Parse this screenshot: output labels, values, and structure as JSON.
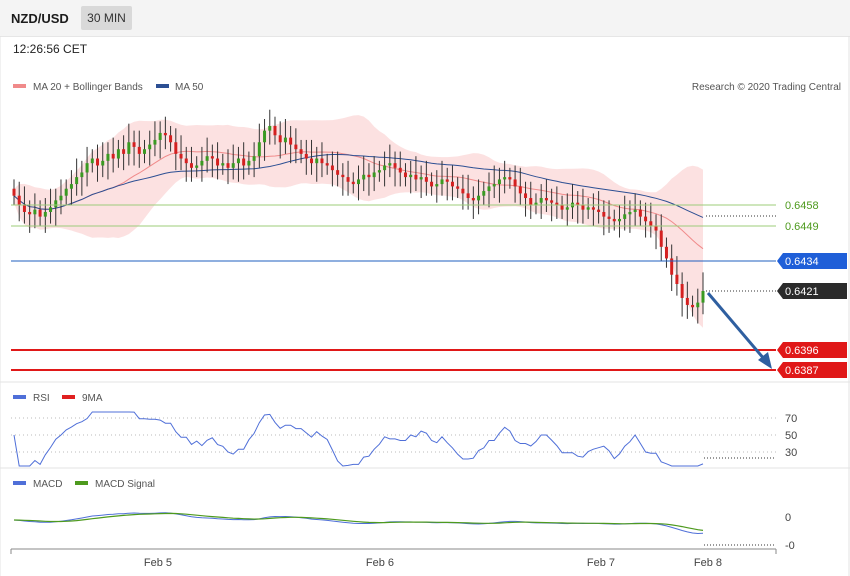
{
  "header": {
    "pair": "NZD/USD",
    "timeframe": "30 MIN",
    "time": "12:26:56 CET"
  },
  "legend": {
    "ma20": {
      "label": "MA 20 + Bollinger Bands",
      "color": "#f08a8a"
    },
    "ma50": {
      "label": "MA 50",
      "color": "#2c4f93"
    },
    "rsi": {
      "label": "RSI",
      "color": "#4f6fd8"
    },
    "rsi9": {
      "label": "9MA",
      "color": "#e02020"
    },
    "macd": {
      "label": "MACD",
      "color": "#4f6fd8"
    },
    "macdsig": {
      "label": "MACD Signal",
      "color": "#4e9a1e"
    }
  },
  "credit": "Research © 2020 Trading Central",
  "levels": {
    "r1": "0.6458",
    "r2": "0.6449",
    "pivot": "0.6434",
    "current": "0.6421",
    "s1": "0.6396",
    "s2": "0.6387"
  },
  "rsi_ticks": [
    "70",
    "50",
    "30"
  ],
  "macd_ticks": [
    "0",
    "-0"
  ],
  "x_labels": [
    "Feb 5",
    "Feb 6",
    "Feb 7",
    "Feb 8"
  ],
  "chart_data": {
    "type": "candlestick",
    "x_ticks": [
      "Feb 5",
      "Feb 6",
      "Feb 7",
      "Feb 8"
    ],
    "price_range": [
      0.638,
      0.65
    ],
    "closes": [
      0.6462,
      0.6458,
      0.6455,
      0.6454,
      0.6456,
      0.6453,
      0.6455,
      0.6457,
      0.646,
      0.6462,
      0.6465,
      0.6467,
      0.647,
      0.6472,
      0.6476,
      0.6478,
      0.6475,
      0.6477,
      0.648,
      0.6478,
      0.6482,
      0.648,
      0.6485,
      0.6483,
      0.648,
      0.6482,
      0.6484,
      0.6486,
      0.6489,
      0.6488,
      0.6485,
      0.648,
      0.6478,
      0.6476,
      0.6474,
      0.6475,
      0.6477,
      0.6479,
      0.6478,
      0.6475,
      0.6476,
      0.6474,
      0.6476,
      0.6478,
      0.6475,
      0.6477,
      0.6479,
      0.6485,
      0.649,
      0.6492,
      0.6488,
      0.6485,
      0.6487,
      0.6484,
      0.6482,
      0.648,
      0.6478,
      0.6476,
      0.6478,
      0.6476,
      0.6475,
      0.6473,
      0.6471,
      0.647,
      0.6468,
      0.6467,
      0.6469,
      0.6471,
      0.647,
      0.6472,
      0.6473,
      0.6475,
      0.6476,
      0.6474,
      0.6472,
      0.647,
      0.6471,
      0.6469,
      0.647,
      0.6468,
      0.6466,
      0.6467,
      0.6469,
      0.6468,
      0.6466,
      0.6465,
      0.6463,
      0.6461,
      0.646,
      0.6462,
      0.6464,
      0.6466,
      0.6467,
      0.6469,
      0.647,
      0.6469,
      0.6466,
      0.6463,
      0.6461,
      0.6458,
      0.6459,
      0.6461,
      0.646,
      0.6459,
      0.6458,
      0.6456,
      0.6457,
      0.6459,
      0.6458,
      0.6456,
      0.6457,
      0.6456,
      0.6455,
      0.6453,
      0.6452,
      0.6451,
      0.6452,
      0.6454,
      0.6455,
      0.6456,
      0.6453,
      0.6451,
      0.6449,
      0.6447,
      0.644,
      0.6435,
      0.6428,
      0.6424,
      0.6418,
      0.6415,
      0.6414,
      0.6416,
      0.6421
    ],
    "ma20_range_note": "Bollinger band drawn around MA 20",
    "rsi_range": [
      0,
      100
    ],
    "series": [
      {
        "name": "RSI"
      },
      {
        "name": "9MA"
      },
      {
        "name": "MACD"
      },
      {
        "name": "MACD Signal"
      }
    ],
    "levels": [
      0.6458,
      0.6449,
      0.6434,
      0.6421,
      0.6396,
      0.6387
    ],
    "grid": false
  }
}
